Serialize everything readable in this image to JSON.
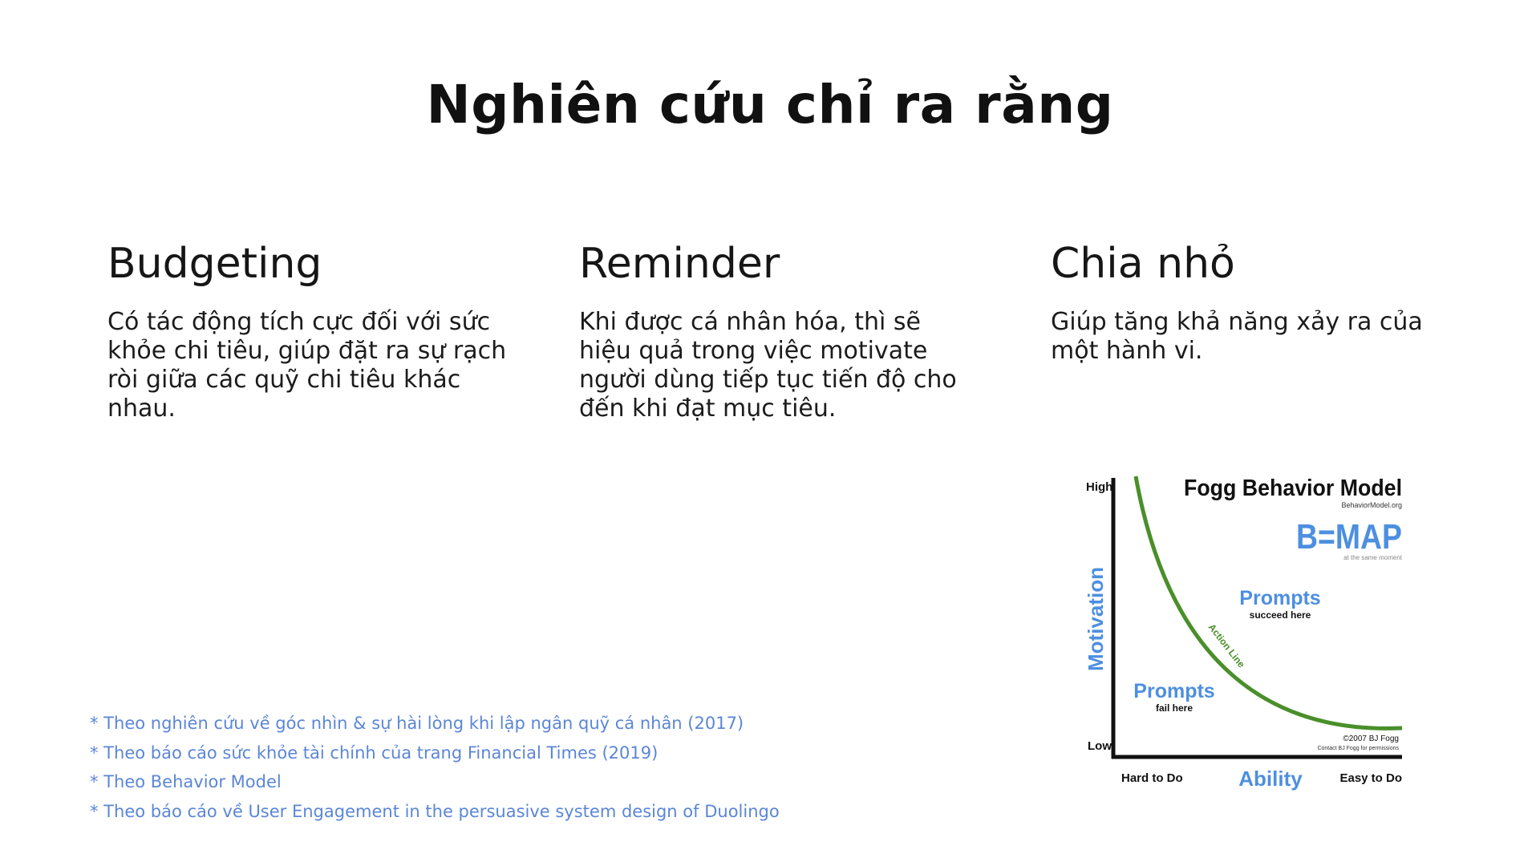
{
  "title": "Nghiên cứu chỉ ra rằng",
  "columns": [
    {
      "heading": "Budgeting",
      "body": "Có tác động tích cực đối với sức khỏe chi tiêu, giúp đặt ra sự rạch ròi giữa các quỹ chi tiêu khác nhau."
    },
    {
      "heading": "Reminder",
      "body": "Khi được cá nhân hóa, thì sẽ hiệu quả trong việc motivate người dùng tiếp tục tiến độ cho đến khi đạt mục tiêu."
    },
    {
      "heading": "Chia nhỏ",
      "body": "Giúp tăng khả năng xảy ra của một hành vi."
    }
  ],
  "footnotes": [
    "* Theo nghiên cứu về góc nhìn & sự hài lòng khi lập ngân quỹ cá nhân (2017)",
    "* Theo báo cáo sức khỏe tài chính của trang Financial Times (2019)",
    "* Theo Behavior Model",
    "* Theo báo cáo về User Engagement in the persuasive system design of Duolingo"
  ],
  "diagram": {
    "title": "Fogg Behavior Model",
    "site": "BehaviorModel.org",
    "formula": "B=MAP",
    "formula_note": "at the same moment",
    "y_axis_label": "Motivation",
    "y_high": "High",
    "y_low": "Low",
    "x_axis_label": "Ability",
    "x_left": "Hard to Do",
    "x_right": "Easy to Do",
    "curve_label": "Action Line",
    "prompts_success": "Prompts",
    "prompts_success_note": "succeed here",
    "prompts_fail": "Prompts",
    "prompts_fail_note": "fail here",
    "copyright": "©2007 BJ Fogg",
    "permission": "Contact BJ Fogg for permissions",
    "colors": {
      "blue": "#4d8fe0",
      "green": "#4a8f2a",
      "black": "#111111"
    }
  }
}
